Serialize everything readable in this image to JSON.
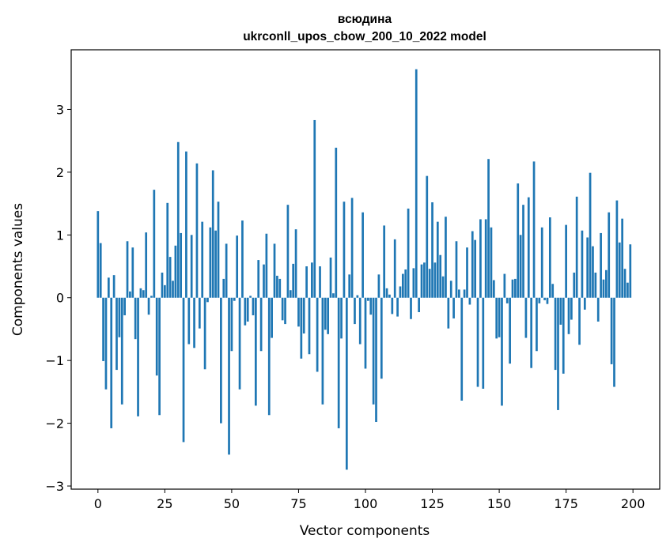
{
  "chart_data": {
    "type": "bar",
    "title": "всюдина",
    "subtitle": "ukrconll_upos_cbow_200_10_2022 model",
    "xlabel": "Vector components",
    "ylabel": "Components values",
    "xlim": [
      -10,
      210
    ],
    "ylim": [
      -3.05,
      3.95
    ],
    "x_ticks": [
      0,
      25,
      50,
      75,
      100,
      125,
      150,
      175,
      200
    ],
    "y_ticks": [
      -3,
      -2,
      -1,
      0,
      1,
      2,
      3
    ],
    "grid": false,
    "legend": "none",
    "bar_color": "#1f77b4",
    "x": [
      0,
      1,
      2,
      3,
      4,
      5,
      6,
      7,
      8,
      9,
      10,
      11,
      12,
      13,
      14,
      15,
      16,
      17,
      18,
      19,
      20,
      21,
      22,
      23,
      24,
      25,
      26,
      27,
      28,
      29,
      30,
      31,
      32,
      33,
      34,
      35,
      36,
      37,
      38,
      39,
      40,
      41,
      42,
      43,
      44,
      45,
      46,
      47,
      48,
      49,
      50,
      51,
      52,
      53,
      54,
      55,
      56,
      57,
      58,
      59,
      60,
      61,
      62,
      63,
      64,
      65,
      66,
      67,
      68,
      69,
      70,
      71,
      72,
      73,
      74,
      75,
      76,
      77,
      78,
      79,
      80,
      81,
      82,
      83,
      84,
      85,
      86,
      87,
      88,
      89,
      90,
      91,
      92,
      93,
      94,
      95,
      96,
      97,
      98,
      99,
      100,
      101,
      102,
      103,
      104,
      105,
      106,
      107,
      108,
      109,
      110,
      111,
      112,
      113,
      114,
      115,
      116,
      117,
      118,
      119,
      120,
      121,
      122,
      123,
      124,
      125,
      126,
      127,
      128,
      129,
      130,
      131,
      132,
      133,
      134,
      135,
      136,
      137,
      138,
      139,
      140,
      141,
      142,
      143,
      144,
      145,
      146,
      147,
      148,
      149,
      150,
      151,
      152,
      153,
      154,
      155,
      156,
      157,
      158,
      159,
      160,
      161,
      162,
      163,
      164,
      165,
      166,
      167,
      168,
      169,
      170,
      171,
      172,
      173,
      174,
      175,
      176,
      177,
      178,
      179,
      180,
      181,
      182,
      183,
      184,
      185,
      186,
      187,
      188,
      189,
      190,
      191,
      192,
      193,
      194,
      195,
      196,
      197,
      198,
      199
    ],
    "values": [
      1.38,
      0.87,
      -1.01,
      -1.46,
      0.32,
      -2.08,
      0.36,
      -1.15,
      -0.63,
      -1.7,
      -0.28,
      0.9,
      0.1,
      0.8,
      -0.66,
      -1.89,
      0.15,
      0.12,
      1.04,
      -0.27,
      0.03,
      1.72,
      -1.24,
      -1.87,
      0.4,
      0.2,
      1.51,
      0.65,
      0.27,
      0.83,
      2.48,
      1.03,
      -2.3,
      2.33,
      -0.74,
      1.0,
      -0.8,
      2.14,
      -0.49,
      1.21,
      -1.14,
      -0.07,
      1.12,
      2.03,
      1.07,
      1.53,
      -2.0,
      0.3,
      0.86,
      -2.5,
      -0.85,
      -0.05,
      0.99,
      -1.46,
      1.23,
      -0.44,
      -0.38,
      0.03,
      -0.28,
      -1.72,
      0.6,
      -0.85,
      0.53,
      1.02,
      -1.87,
      -0.64,
      0.86,
      0.35,
      0.3,
      -0.36,
      -0.42,
      1.48,
      0.12,
      0.54,
      1.09,
      -0.46,
      -0.97,
      -0.57,
      0.5,
      -0.9,
      0.56,
      2.83,
      -1.18,
      0.5,
      -1.7,
      -0.51,
      -0.58,
      0.64,
      0.07,
      2.39,
      -2.08,
      -0.65,
      1.53,
      -2.74,
      0.37,
      1.59,
      -0.42,
      0.04,
      -0.74,
      1.36,
      -1.13,
      -0.05,
      -0.27,
      -1.7,
      -1.98,
      0.37,
      -1.29,
      1.15,
      0.15,
      0.05,
      -0.26,
      0.93,
      -0.3,
      0.18,
      0.38,
      0.45,
      1.42,
      -0.34,
      0.47,
      3.64,
      -0.23,
      0.53,
      0.56,
      1.94,
      0.46,
      1.52,
      0.56,
      1.21,
      0.68,
      0.34,
      1.29,
      -0.49,
      0.27,
      -0.33,
      0.9,
      0.13,
      -1.64,
      0.13,
      0.8,
      -0.11,
      1.06,
      0.92,
      -1.42,
      1.25,
      -1.45,
      1.25,
      2.21,
      1.12,
      0.28,
      -0.65,
      -0.63,
      -1.72,
      0.38,
      -0.09,
      -1.05,
      0.29,
      0.3,
      1.82,
      1.0,
      1.48,
      -0.64,
      1.6,
      -1.12,
      2.17,
      -0.85,
      -0.09,
      1.12,
      -0.04,
      -0.1,
      1.28,
      0.22,
      -1.15,
      -1.79,
      -0.43,
      -1.21,
      1.16,
      -0.58,
      -0.35,
      0.4,
      1.61,
      -0.75,
      1.07,
      -0.19,
      0.96,
      1.99,
      0.82,
      0.4,
      -0.38,
      1.03,
      0.29,
      0.44,
      1.36,
      -1.06,
      -1.42,
      1.55,
      0.88,
      1.26,
      0.46,
      0.24,
      0.85
    ]
  }
}
